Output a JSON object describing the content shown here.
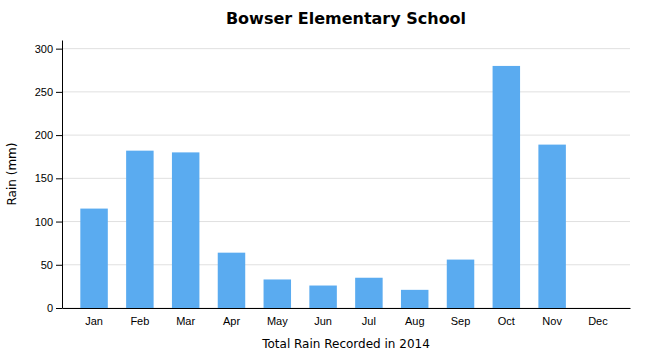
{
  "chart_data": {
    "type": "bar",
    "title": "Bowser Elementary School",
    "xlabel": "Total Rain Recorded in 2014",
    "ylabel": "Rain (mm)",
    "categories": [
      "Jan",
      "Feb",
      "Mar",
      "Apr",
      "May",
      "Jun",
      "Jul",
      "Aug",
      "Sep",
      "Oct",
      "Nov",
      "Dec"
    ],
    "values": [
      115,
      182,
      180,
      64,
      33,
      26,
      35,
      21,
      56,
      280,
      189,
      0
    ],
    "color": "#5aabf0",
    "ylim": [
      0,
      310
    ],
    "yticks": [
      0,
      50,
      100,
      150,
      200,
      250,
      300
    ],
    "grid": true
  }
}
